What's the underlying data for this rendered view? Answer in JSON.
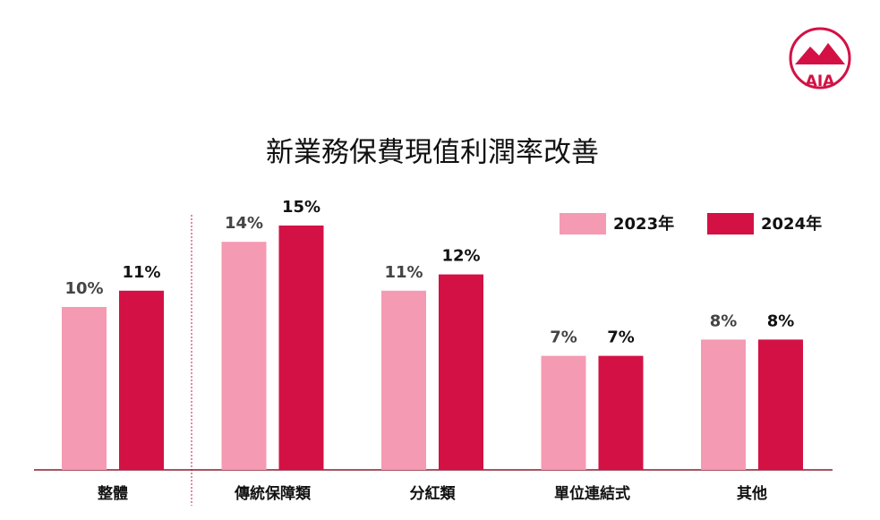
{
  "chart_data": {
    "type": "bar",
    "title": "新業務保費現值利潤率改善",
    "logo": "AIA",
    "categories": [
      "整體",
      "傳統保障類",
      "分紅類",
      "單位連結式",
      "其他"
    ],
    "series": [
      {
        "name": "2023年",
        "color": "#f59ab3",
        "values": [
          10,
          14,
          11,
          7,
          8
        ],
        "value_labels": [
          "10%",
          "14%",
          "11%",
          "7%",
          "8%"
        ]
      },
      {
        "name": "2024年",
        "color": "#d31145",
        "values": [
          11,
          15,
          12,
          7,
          8
        ],
        "value_labels": [
          "11%",
          "15%",
          "12%",
          "7%",
          "8%"
        ]
      }
    ]
  }
}
